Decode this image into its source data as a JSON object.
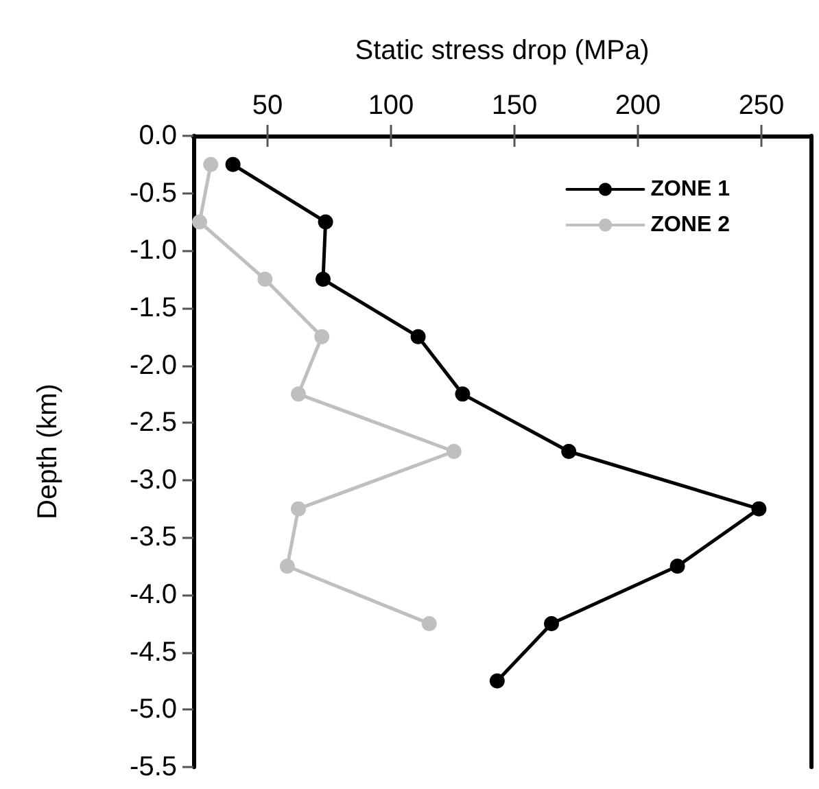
{
  "chart_data": {
    "type": "line",
    "xlabel": "Static stress drop (MPa)",
    "ylabel": "Depth (km)",
    "xlim": [
      20,
      270
    ],
    "xticks": [
      50,
      100,
      150,
      200,
      250
    ],
    "ylim": [
      -5.5,
      0
    ],
    "yticks": [
      {
        "value": 0,
        "label": "0.0"
      },
      {
        "value": -0.5,
        "label": "-0.5"
      },
      {
        "value": -1,
        "label": "-1.0"
      },
      {
        "value": -1.5,
        "label": "-1.5"
      },
      {
        "value": -2,
        "label": "-2.0"
      },
      {
        "value": -2.5,
        "label": "-2.5"
      },
      {
        "value": -3,
        "label": "-3.0"
      },
      {
        "value": -3.5,
        "label": "-3.5"
      },
      {
        "value": -4,
        "label": "-4.0"
      },
      {
        "value": -4.5,
        "label": "-4.5"
      },
      {
        "value": -5,
        "label": "-5.0"
      },
      {
        "value": -5.5,
        "label": "-5.5"
      }
    ],
    "grid": false,
    "legend": "top right",
    "marker": "circle",
    "line_style": "solid",
    "series": [
      {
        "name": "ZONE 1",
        "color": "#000000",
        "x": [
          36,
          73.5,
          72.5,
          111,
          129,
          172,
          249,
          216,
          165,
          143
        ],
        "values": [
          -0.25,
          -0.75,
          -1.25,
          -1.75,
          -2.25,
          -2.75,
          -3.25,
          -3.75,
          -4.25,
          -4.75
        ]
      },
      {
        "name": "ZONE 2",
        "color": "#bfbfbf",
        "x": [
          27,
          22.5,
          49,
          72,
          62.5,
          125.5,
          62.5,
          58,
          115.5
        ],
        "values": [
          -0.25,
          -0.75,
          -1.25,
          -1.75,
          -2.25,
          -2.75,
          -3.25,
          -3.75,
          -4.25
        ]
      }
    ]
  }
}
